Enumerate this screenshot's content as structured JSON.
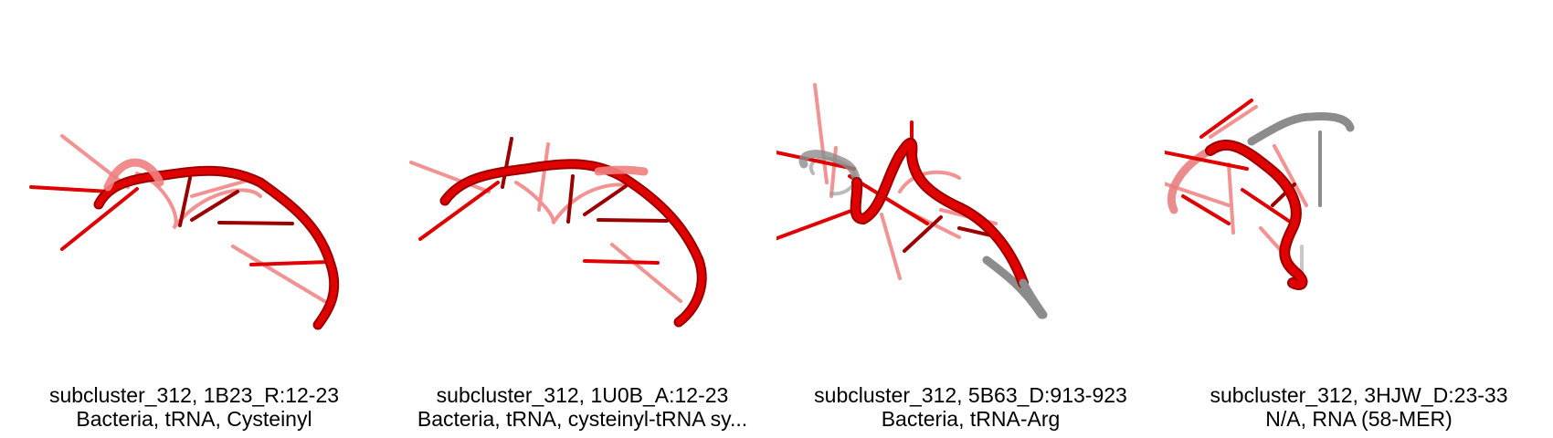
{
  "colors": {
    "rna_red": "#e00000",
    "rna_dark_red": "#9a0000",
    "rna_light_red": "#f08080",
    "unaligned_gray": "#8c8c8c",
    "caption_text": "#000000",
    "background": "#ffffff"
  },
  "panels": [
    {
      "title": "subcluster_312, 1B23_R:12-23",
      "subtitle": "Bacteria, tRNA, Cysteinyl",
      "has_gray_segment": false
    },
    {
      "title": "subcluster_312, 1U0B_A:12-23",
      "subtitle": "Bacteria, tRNA, cysteinyl-tRNA sy...",
      "has_gray_segment": false
    },
    {
      "title": "subcluster_312, 5B63_D:913-923",
      "subtitle": "Bacteria, tRNA-Arg",
      "has_gray_segment": true
    },
    {
      "title": "subcluster_312, 3HJW_D:23-33",
      "subtitle": "N/A, RNA (58-MER)",
      "has_gray_segment": true
    }
  ]
}
